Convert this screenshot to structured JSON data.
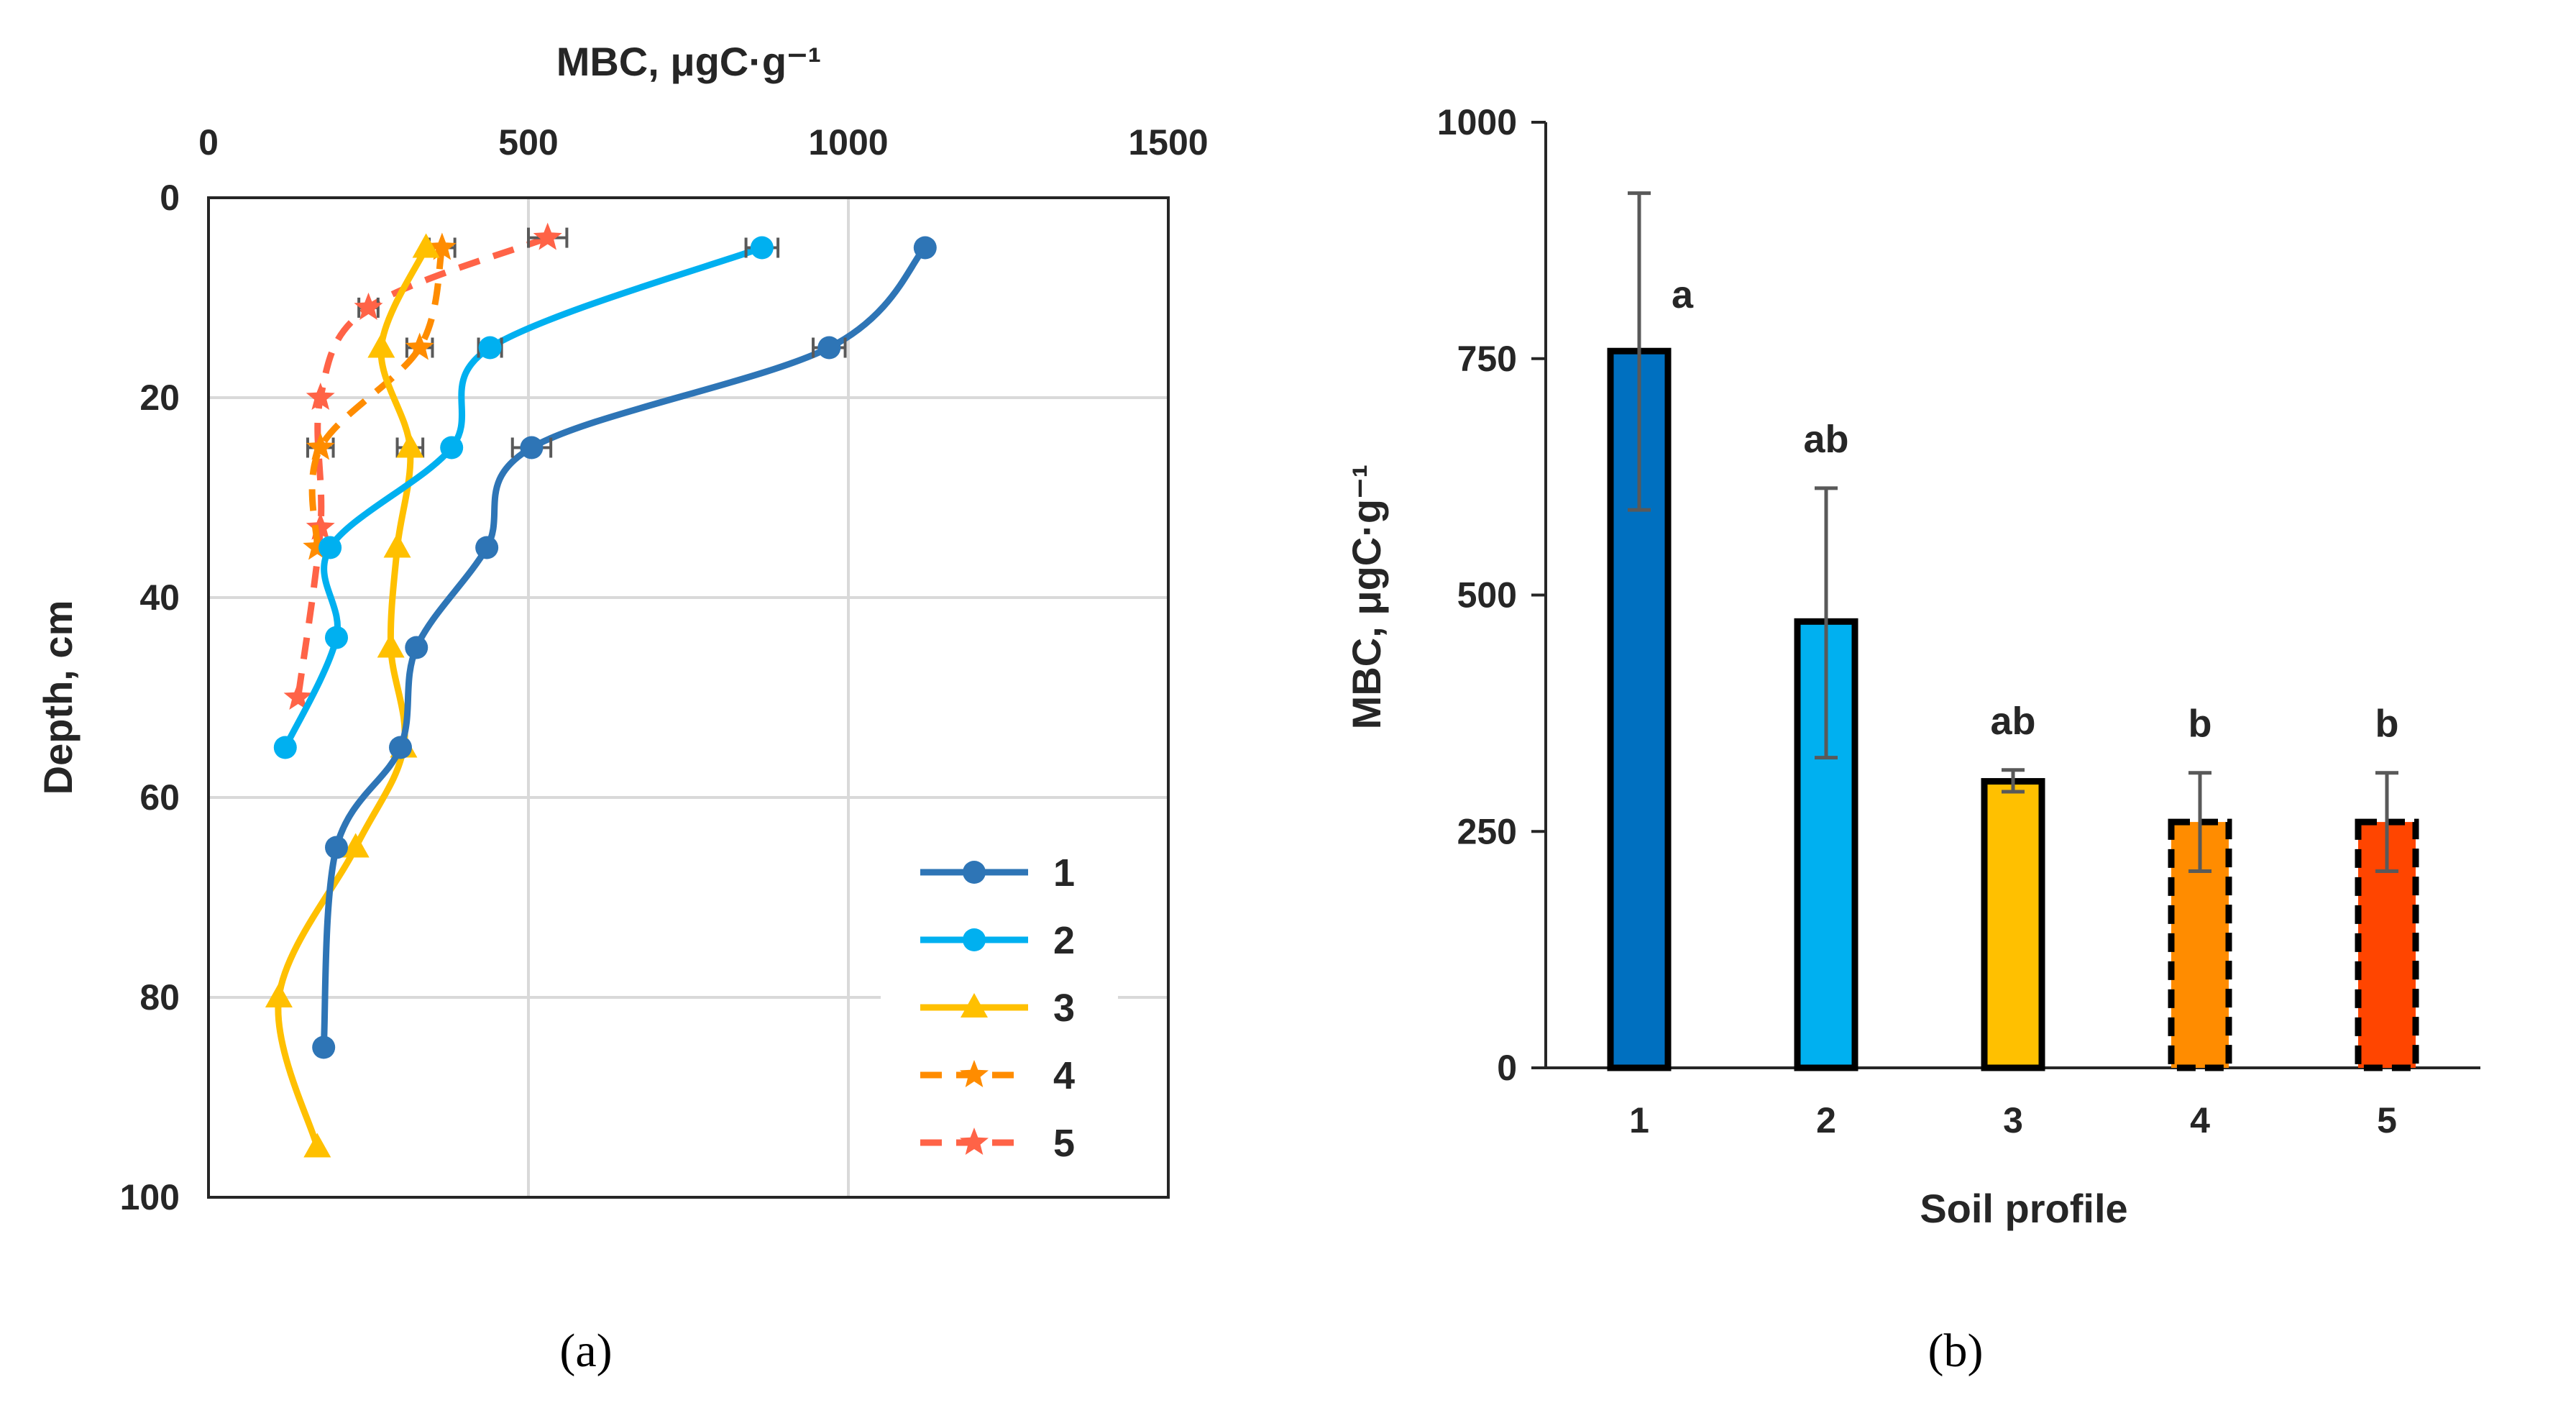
{
  "captions": {
    "a": "(a)",
    "b": "(b)"
  },
  "colors": {
    "s1": "#2E75B6",
    "s2": "#00B0F0",
    "s3": "#FFC000",
    "s4": "#FF8C00",
    "s5": "#FF6347",
    "bar1": "#0070C0",
    "bar2": "#00B0F0",
    "bar3": "#FFC000",
    "bar4": "#FF8C00",
    "bar5": "#FF4500",
    "grid": "#D9D9D9",
    "axis": "#262626",
    "err": "#595959"
  },
  "chart_data": [
    {
      "type": "line",
      "title": "",
      "xlabel": "MBC, μgC·g⁻¹",
      "ylabel": "Depth, cm",
      "xlim": [
        0,
        1500
      ],
      "ylim": [
        0,
        100
      ],
      "x_axis_position": "top",
      "y_axis_inverted": true,
      "x_ticks": [
        "0",
        "500",
        "1000",
        "1500"
      ],
      "y_ticks": [
        "0",
        "20",
        "40",
        "60",
        "80",
        "100"
      ],
      "legend": [
        "1",
        "2",
        "3",
        "4",
        "5"
      ],
      "legend_position": "bottom-right",
      "series": [
        {
          "name": "1",
          "marker": "circle",
          "dashed": false,
          "points": [
            [
              1120,
              5
            ],
            [
              970,
              15
            ],
            [
              505,
              25
            ],
            [
              435,
              35
            ],
            [
              325,
              45
            ],
            [
              300,
              55
            ],
            [
              200,
              65
            ],
            [
              180,
              85
            ]
          ],
          "errors": [
            0,
            25,
            30,
            0,
            0,
            0,
            0,
            0
          ]
        },
        {
          "name": "2",
          "marker": "circle",
          "dashed": false,
          "points": [
            [
              865,
              5
            ],
            [
              440,
              15
            ],
            [
              380,
              25
            ],
            [
              190,
              35
            ],
            [
              200,
              44
            ],
            [
              120,
              55
            ]
          ],
          "errors": [
            25,
            18,
            0,
            0,
            0,
            0
          ]
        },
        {
          "name": "3",
          "marker": "triangle",
          "dashed": false,
          "points": [
            [
              340,
              5
            ],
            [
              270,
              15
            ],
            [
              315,
              25
            ],
            [
              295,
              35
            ],
            [
              285,
              45
            ],
            [
              305,
              55
            ],
            [
              230,
              65
            ],
            [
              110,
              80
            ],
            [
              170,
              95
            ]
          ],
          "errors": [
            0,
            0,
            20,
            0,
            0,
            0,
            0,
            0,
            0
          ]
        },
        {
          "name": "4",
          "marker": "star",
          "dashed": true,
          "points": [
            [
              365,
              5
            ],
            [
              330,
              15
            ],
            [
              175,
              25
            ],
            [
              170,
              35
            ]
          ],
          "errors": [
            20,
            20,
            20,
            0
          ]
        },
        {
          "name": "5",
          "marker": "star",
          "dashed": true,
          "points": [
            [
              530,
              4
            ],
            [
              250,
              11
            ],
            [
              175,
              20
            ],
            [
              175,
              33
            ],
            [
              140,
              50
            ]
          ],
          "errors": [
            30,
            15,
            0,
            0,
            0
          ]
        }
      ]
    },
    {
      "type": "bar",
      "title": "",
      "xlabel": "Soil profile",
      "ylabel": "MBC, μgC·g⁻¹",
      "ylim": [
        0,
        1000
      ],
      "y_ticks": [
        "0",
        "250",
        "500",
        "750",
        "1000"
      ],
      "categories": [
        "1",
        "2",
        "3",
        "4",
        "5"
      ],
      "values": [
        758,
        472,
        303,
        260,
        260
      ],
      "err_low": [
        590,
        328,
        292,
        208,
        208
      ],
      "err_high": [
        925,
        613,
        315,
        312,
        312
      ],
      "significance": [
        "a",
        "ab",
        "ab",
        "b",
        "b"
      ],
      "dashed_outline": [
        false,
        false,
        false,
        true,
        true
      ]
    }
  ]
}
